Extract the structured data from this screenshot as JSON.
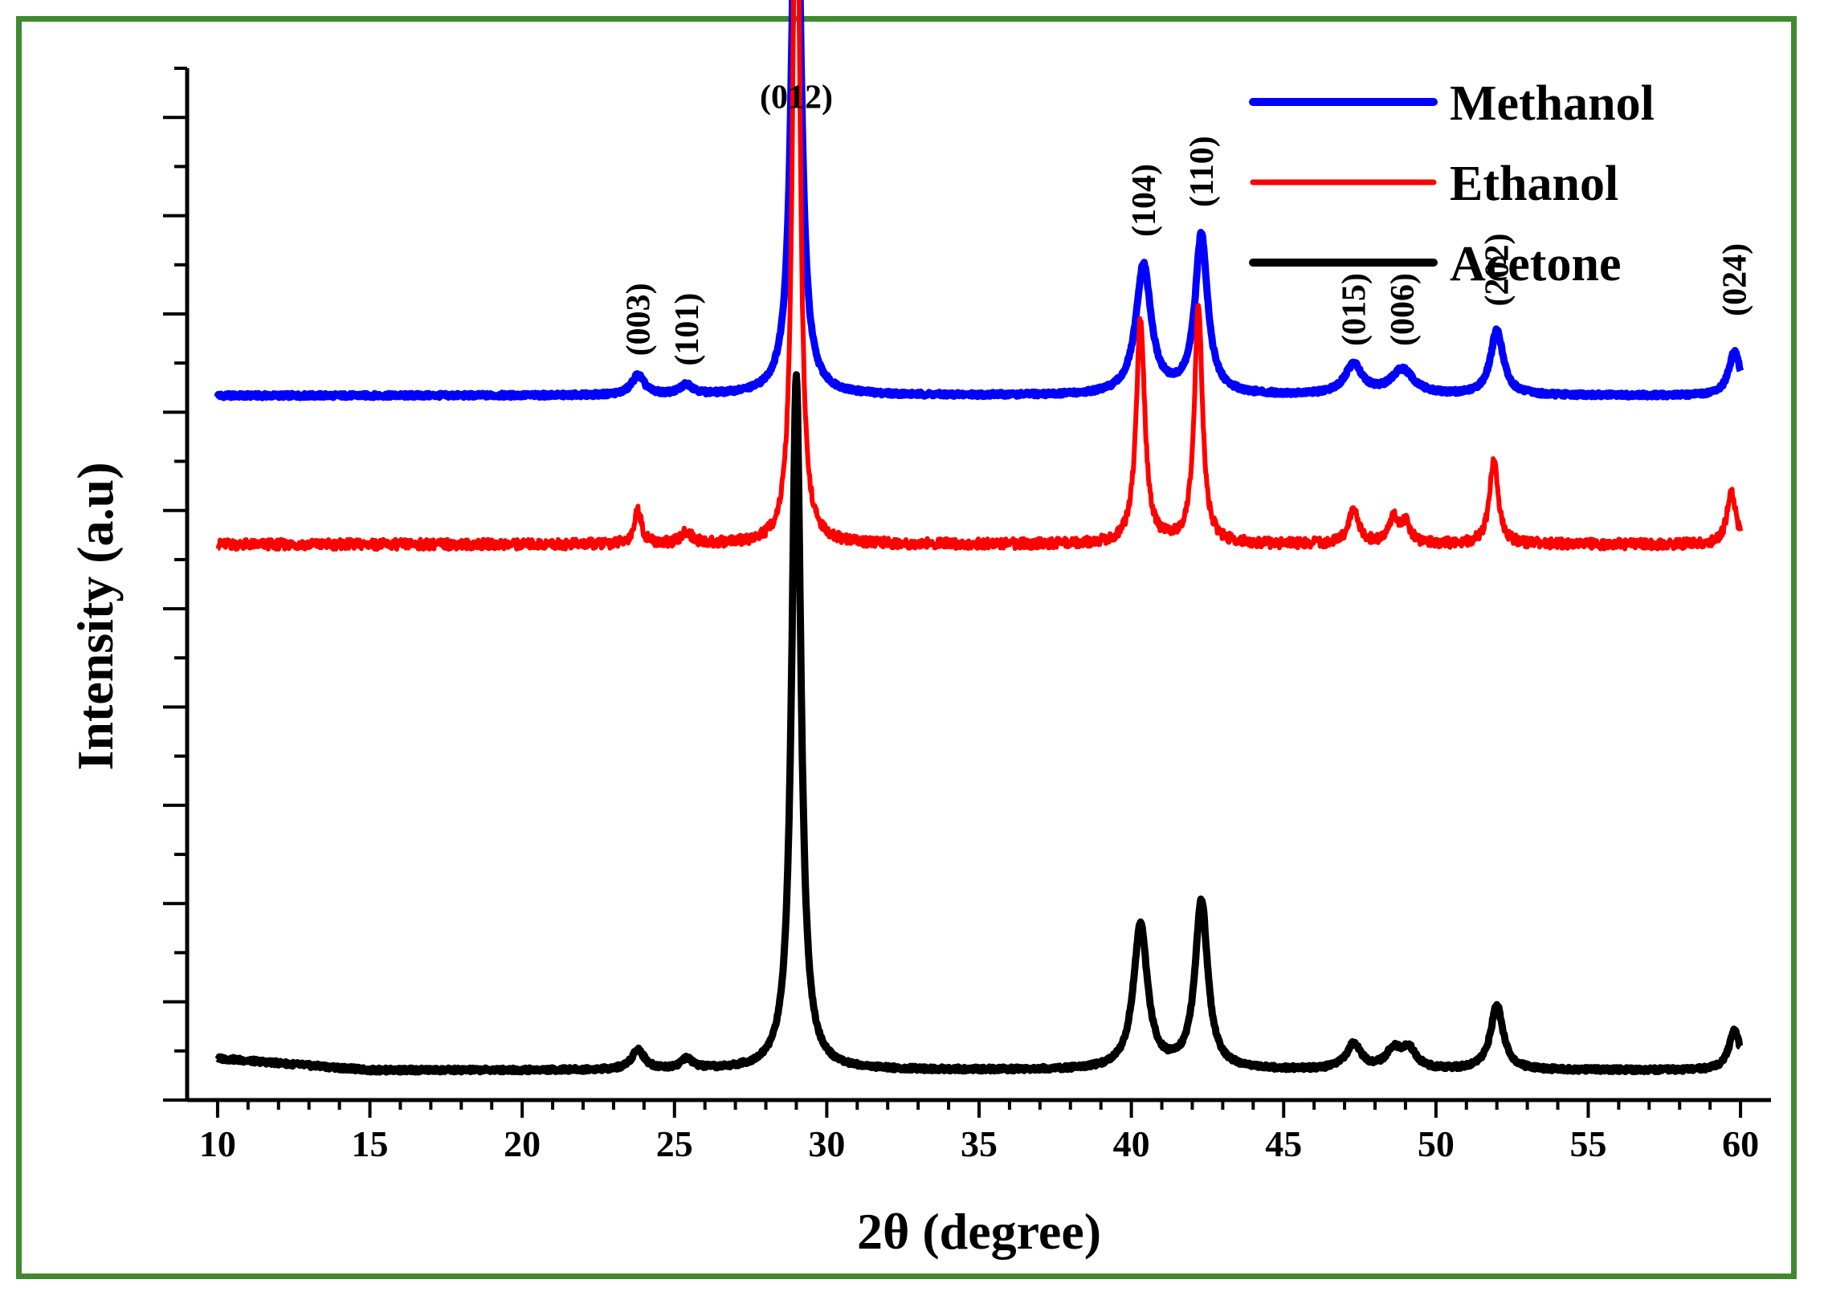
{
  "chart_data": {
    "type": "line",
    "title": "",
    "xlabel": "2θ (degree)",
    "ylabel": "Intensity (a.u)",
    "xlim": [
      9,
      61
    ],
    "x_ticks": [
      "10",
      "15",
      "20",
      "25",
      "30",
      "35",
      "40",
      "45",
      "50",
      "55",
      "60"
    ],
    "y_ticks_labeled": false,
    "grid": false,
    "legend_position": "top-right",
    "series": [
      {
        "name": "Methanol",
        "color": "#0000ff",
        "stroke": 9,
        "baseline": 0.71,
        "peaks": [
          [
            23.8,
            0.02,
            0.25
          ],
          [
            25.4,
            0.01,
            0.25
          ],
          [
            29.0,
            0.6,
            0.18
          ],
          [
            40.4,
            0.13,
            0.3
          ],
          [
            42.3,
            0.16,
            0.25
          ],
          [
            47.3,
            0.03,
            0.35
          ],
          [
            48.9,
            0.025,
            0.45
          ],
          [
            52.0,
            0.065,
            0.25
          ],
          [
            59.8,
            0.045,
            0.22
          ]
        ]
      },
      {
        "name": "Ethanol",
        "color": "#ff0000",
        "stroke": 6,
        "baseline": 0.56,
        "peaks": [
          [
            23.8,
            0.035,
            0.14
          ],
          [
            25.4,
            0.012,
            0.2
          ],
          [
            29.0,
            0.825,
            0.13
          ],
          [
            40.3,
            0.225,
            0.17
          ],
          [
            42.2,
            0.24,
            0.16
          ],
          [
            47.3,
            0.035,
            0.2
          ],
          [
            48.6,
            0.025,
            0.18
          ],
          [
            49.0,
            0.02,
            0.2
          ],
          [
            51.9,
            0.085,
            0.17
          ],
          [
            59.7,
            0.055,
            0.17
          ]
        ]
      },
      {
        "name": "Acetone",
        "color": "#000000",
        "stroke": 9,
        "baseline": 0.03,
        "peaks": [
          [
            23.8,
            0.02,
            0.25
          ],
          [
            25.4,
            0.01,
            0.25
          ],
          [
            29.0,
            0.7,
            0.18
          ],
          [
            40.3,
            0.145,
            0.28
          ],
          [
            42.3,
            0.17,
            0.25
          ],
          [
            47.3,
            0.025,
            0.3
          ],
          [
            48.6,
            0.018,
            0.28
          ],
          [
            49.1,
            0.02,
            0.3
          ],
          [
            52.0,
            0.065,
            0.25
          ],
          [
            59.8,
            0.04,
            0.22
          ]
        ]
      }
    ],
    "annotations": [
      {
        "text": "(012)",
        "x": 29.0,
        "y": 1.0,
        "rotate": false
      },
      {
        "text": "(003)",
        "x": 23.8,
        "y": 0.75,
        "rotate": true
      },
      {
        "text": "(101)",
        "x": 25.4,
        "y": 0.74,
        "rotate": true
      },
      {
        "text": "(104)",
        "x": 40.4,
        "y": 0.87,
        "rotate": true
      },
      {
        "text": "(110)",
        "x": 42.3,
        "y": 0.9,
        "rotate": true
      },
      {
        "text": "(015)",
        "x": 47.3,
        "y": 0.76,
        "rotate": true
      },
      {
        "text": "(006)",
        "x": 48.9,
        "y": 0.76,
        "rotate": true
      },
      {
        "text": "(202)",
        "x": 52.0,
        "y": 0.8,
        "rotate": true
      },
      {
        "text": "(024)",
        "x": 59.8,
        "y": 0.79,
        "rotate": true
      }
    ]
  }
}
